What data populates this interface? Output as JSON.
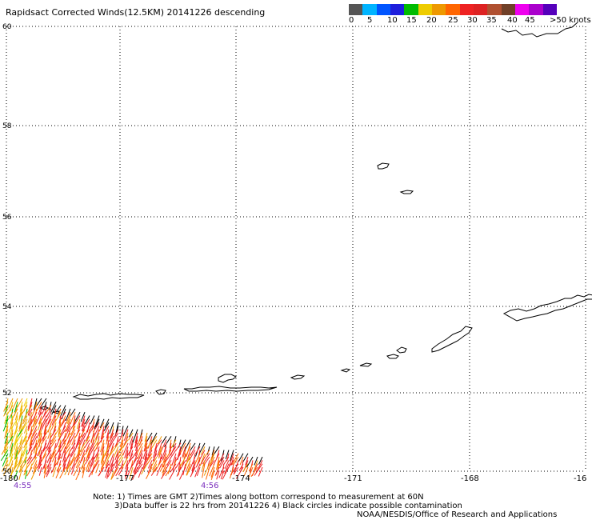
{
  "title": "Rapidsact Corrected Winds(12.5KM) 20141226 descending",
  "colorbar": {
    "colors": [
      "#555555",
      "#00b4ff",
      "#0055ff",
      "#1e1edc",
      "#00bb00",
      "#eecc00",
      "#ee9900",
      "#ff6600",
      "#ee2222",
      "#dd2222",
      "#b05030",
      "#704028",
      "#ee00ee",
      "#aa00cc",
      "#5500bb"
    ],
    "labels": [
      "0",
      "5",
      "10",
      "15",
      "20",
      "25",
      "30",
      "35",
      "40",
      "45",
      ">50 knots"
    ]
  },
  "map": {
    "lat_labels": [
      "60",
      "58",
      "56",
      "54",
      "52",
      "50"
    ],
    "lon_labels": [
      "-180",
      "-177",
      "-174",
      "-171",
      "-168",
      "-16"
    ],
    "times": [
      "4:55",
      "4:56"
    ],
    "time_color": "#7b2fbe",
    "grid_color": "#000000",
    "coast_color": "#000000",
    "wind_colors": [
      "#ee2222",
      "#ff6600",
      "#ee9900",
      "#eecc00",
      "#000000",
      "#00bb00"
    ]
  },
  "notes": [
    "Note: 1) Times are GMT 2)Times along bottom correspond to measurement at 60N",
    "3)Data buffer is 22 hrs from 20141226 4) Black circles indicate possible contamination",
    "NOAA/NESDIS/Office of Research and Applications"
  ]
}
